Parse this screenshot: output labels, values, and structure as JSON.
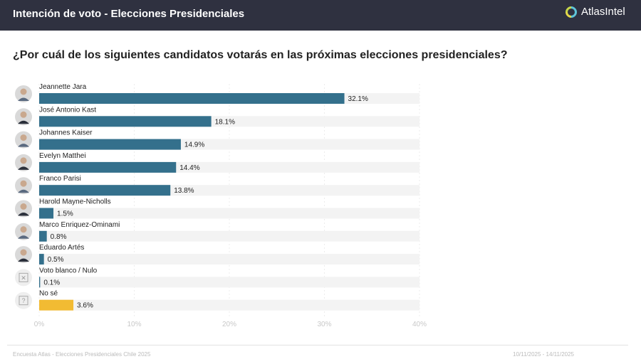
{
  "header": {
    "title": "Intención de voto - Elecciones Presidenciales",
    "logo_text": "AtlasIntel"
  },
  "question": "¿Por cuál de los siguientes candidatos votarás en las próximas elecciones presidenciales?",
  "footer": {
    "source": "Encuesta Atlas - Elecciones Presidenciales Chile 2025",
    "dates": "10/11/2025 - 14/11/2025"
  },
  "colors": {
    "bar": "#34708c",
    "highlight": "#f2bb33",
    "track": "#f3f3f3",
    "header": "#2f3140"
  },
  "chart_data": {
    "type": "bar",
    "orientation": "horizontal",
    "categories": [
      "Jeannette Jara",
      "José Antonio Kast",
      "Johannes Kaiser",
      "Evelyn Matthei",
      "Franco Parisi",
      "Harold Mayne-Nicholls",
      "Marco Enriquez-Ominami",
      "Eduardo Artés",
      "Voto blanco / Nulo",
      "No sé"
    ],
    "values": [
      32.1,
      18.1,
      14.9,
      14.4,
      13.8,
      1.5,
      0.8,
      0.5,
      0.1,
      3.6
    ],
    "value_labels": [
      "32.1%",
      "18.1%",
      "14.9%",
      "14.4%",
      "13.8%",
      "1.5%",
      "0.8%",
      "0.5%",
      "0.1%",
      "3.6%"
    ],
    "icons": [
      "candidate-photo",
      "candidate-photo",
      "candidate-photo",
      "candidate-photo",
      "candidate-photo",
      "candidate-photo",
      "candidate-photo",
      "candidate-photo",
      "x-box-icon",
      "question-box-icon"
    ],
    "xlim": [
      0,
      40
    ],
    "ticks": [
      "0%",
      "10%",
      "20%",
      "30%",
      "40%"
    ],
    "tick_values": [
      0,
      10,
      20,
      30,
      40
    ],
    "grid": true
  }
}
